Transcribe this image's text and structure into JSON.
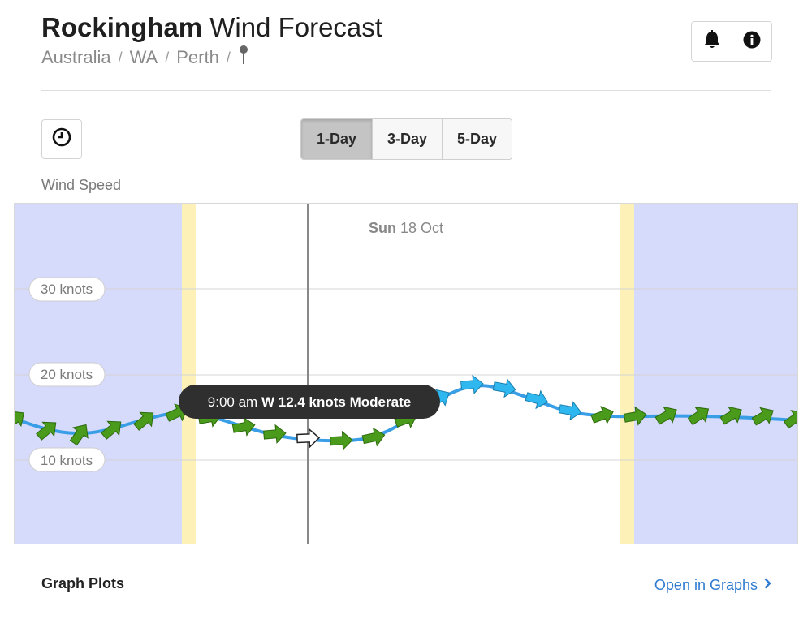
{
  "header": {
    "location": "Rockingham",
    "title_rest": "Wind Forecast",
    "breadcrumb": [
      "Australia",
      "WA",
      "Perth"
    ],
    "breadcrumb_sep": "/"
  },
  "header_buttons": {
    "alerts_icon": "bell-icon",
    "info_icon": "info-icon"
  },
  "controls": {
    "history_icon": "clock-icon",
    "ranges": [
      {
        "label": "1-Day",
        "active": true
      },
      {
        "label": "3-Day",
        "active": false
      },
      {
        "label": "5-Day",
        "active": false
      }
    ]
  },
  "section_label": "Wind Speed",
  "chart": {
    "date_bold": "Sun",
    "date_rest": "18 Oct",
    "ticks": [
      "30 knots",
      "20 knots",
      "10 knots"
    ],
    "tooltip": {
      "time": "9:00 am",
      "detail": "W 12.4 knots Moderate"
    },
    "colors": {
      "night": "#d6dafb",
      "twilight": "#fdf1b8",
      "line": "#3a9ee6",
      "moderate_arrow": "#4a9b1c",
      "light_arrow": "#2fb8f0",
      "cursor": "#888888"
    }
  },
  "footer": {
    "title": "Graph Plots",
    "link": "Open in Graphs",
    "link_icon": "chevron-right-icon"
  }
}
